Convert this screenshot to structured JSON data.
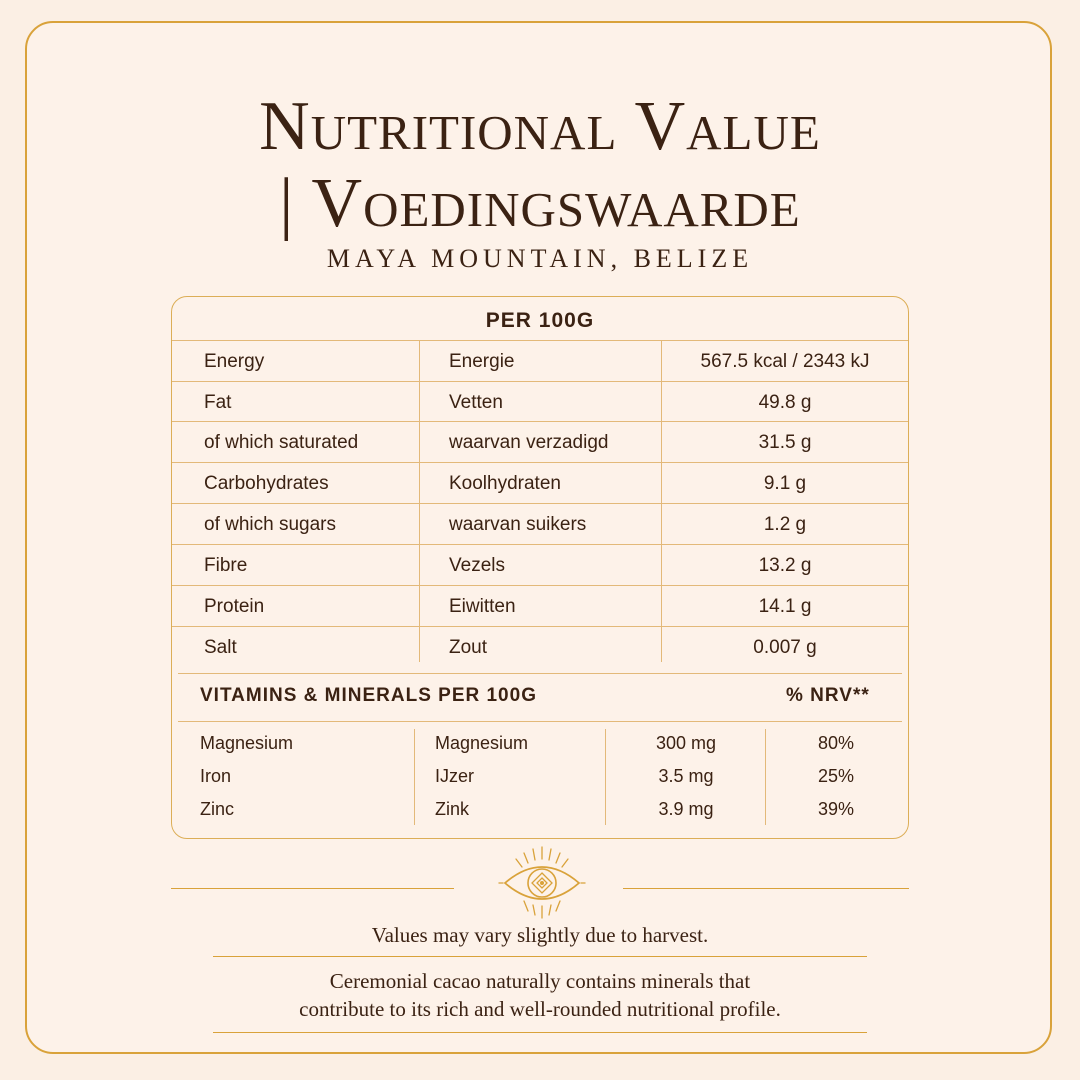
{
  "title_line1": "Nutritional Value",
  "title_line2": "| Voedingswaarde",
  "subtitle": "MAYA MOUNTAIN, BELIZE",
  "per_heading": "PER 100G",
  "nutrition": [
    {
      "en": "Energy",
      "nl": "Energie",
      "value": "567.5 kcal / 2343 kJ"
    },
    {
      "en": "Fat",
      "nl": "Vetten",
      "value": "49.8 g"
    },
    {
      "en": "of which saturated",
      "nl": "waarvan verzadigd",
      "value": "31.5 g"
    },
    {
      "en": "Carbohydrates",
      "nl": "Koolhydraten",
      "value": "9.1 g"
    },
    {
      "en": "of which sugars",
      "nl": "waarvan suikers",
      "value": "1.2 g"
    },
    {
      "en": "Fibre",
      "nl": "Vezels",
      "value": "13.2 g"
    },
    {
      "en": "Protein",
      "nl": "Eiwitten",
      "value": "14.1 g"
    },
    {
      "en": "Salt",
      "nl": "Zout",
      "value": "0.007 g"
    }
  ],
  "vitamins_heading": "VITAMINS & MINERALS PER 100G",
  "nrv_heading": "% NRV**",
  "vitamins": [
    {
      "en": "Magnesium",
      "nl": "Magnesium",
      "amount": "300 mg",
      "nrv": "80%"
    },
    {
      "en": "Iron",
      "nl": "IJzer",
      "amount": "3.5 mg",
      "nrv": "25%"
    },
    {
      "en": "Zinc",
      "nl": "Zink",
      "amount": "3.9 mg",
      "nrv": "39%"
    }
  ],
  "note_line1": "Values may vary slightly due to harvest.",
  "note_line2": "Ceremonial cacao naturally contains minerals that",
  "note_line3": "contribute to its rich and well-rounded nutritional profile.",
  "colors": {
    "accent": "#d9a23a",
    "text": "#3b2213",
    "background": "#fdf2e9"
  },
  "emblem_icon": "sun-eye-icon"
}
